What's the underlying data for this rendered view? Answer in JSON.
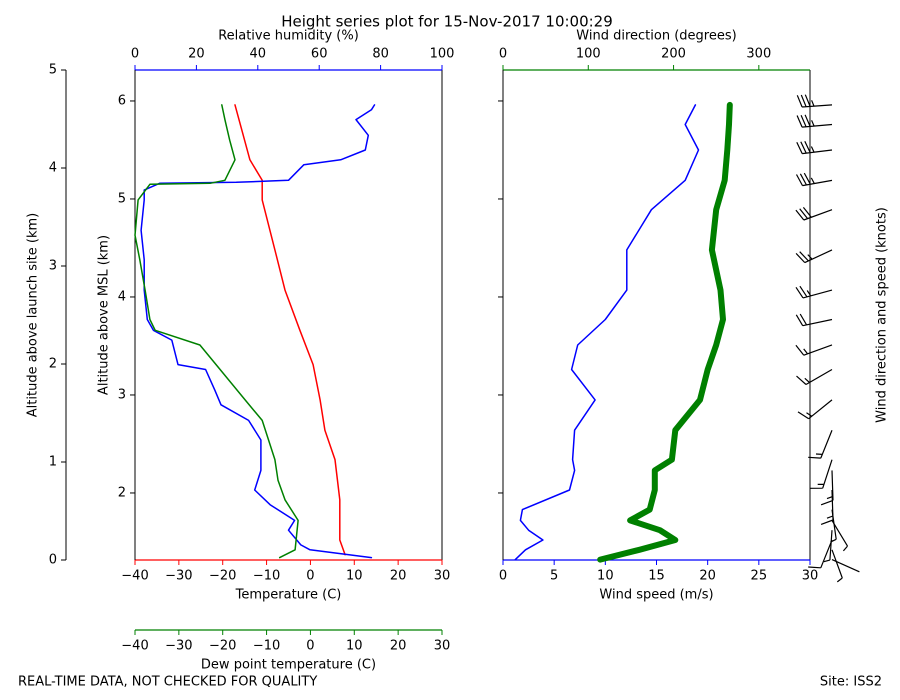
{
  "title": "Height series plot for 15-Nov-2017 10:00:29",
  "footer_left": "REAL-TIME DATA, NOT CHECKED FOR QUALITY",
  "footer_right": "Site: ISS2",
  "chart_data": [
    {
      "type": "line",
      "ylabel": "Altitude above MSL (km)",
      "ylim": [
        1.316,
        6.316
      ],
      "yticks": [
        2,
        3,
        4,
        5,
        6
      ],
      "outer_ylabel": "Altitude above launch site (km)",
      "outer_ylim": [
        0,
        5
      ],
      "outer_yticks": [
        0,
        1,
        2,
        3,
        4,
        5
      ],
      "xlabel": "Temperature (C)",
      "xlim": [
        -40,
        30
      ],
      "xcolor": "#ff0000",
      "xticks": [
        {
          "value": -40,
          "label": "−40"
        },
        {
          "value": -30,
          "label": "−30"
        },
        {
          "value": -20,
          "label": "−20"
        },
        {
          "value": -10,
          "label": "−10"
        },
        0,
        10,
        20,
        30
      ],
      "x2label": "Relative humidity (%)",
      "x2lim": [
        0,
        100
      ],
      "x2color": "#0000ff",
      "x2ticks": [
        0,
        20,
        40,
        60,
        80,
        100
      ],
      "x3label": "Dew point temperature (C)",
      "x3lim": [
        -40,
        30
      ],
      "x3color": "#008000",
      "x3ticks": [
        {
          "value": -40,
          "label": "−40"
        },
        {
          "value": -30,
          "label": "−30"
        },
        {
          "value": -20,
          "label": "−20"
        },
        {
          "value": -10,
          "label": "−10"
        },
        0,
        10,
        20,
        30
      ],
      "series": [
        {
          "axis": "x",
          "color": "#ff0000",
          "width": 1.5,
          "altitude": [
            1.37,
            1.52,
            1.93,
            2.34,
            2.64,
            2.95,
            3.31,
            3.66,
            4.07,
            4.48,
            4.99,
            5.19,
            5.4,
            5.96
          ],
          "values": [
            7.9,
            6.7,
            6.7,
            5.6,
            3.3,
            2.2,
            0.6,
            -2.4,
            -5.8,
            -8.1,
            -11.0,
            -11.0,
            -13.8,
            -17.2
          ]
        },
        {
          "axis": "x2",
          "color": "#0000ff",
          "width": 1.5,
          "altitude": [
            1.34,
            1.42,
            1.47,
            1.62,
            1.72,
            1.88,
            2.03,
            2.23,
            2.54,
            2.74,
            2.9,
            3.05,
            3.26,
            3.31,
            3.56,
            3.66,
            3.77,
            4.07,
            4.38,
            4.68,
            4.99,
            5.09,
            5.16,
            5.17,
            5.19,
            5.35,
            5.4,
            5.5,
            5.65,
            5.81,
            5.91,
            5.96
          ],
          "values": [
            77,
            57,
            54,
            50,
            52,
            44,
            39,
            41,
            41,
            37,
            28,
            26,
            23,
            14,
            12,
            6,
            4,
            3,
            3,
            2,
            3,
            3,
            8,
            33,
            50,
            55,
            67,
            75,
            76,
            72,
            77,
            78
          ]
        },
        {
          "axis": "x3",
          "color": "#008000",
          "width": 1.5,
          "altitude": [
            1.34,
            1.42,
            1.72,
            1.93,
            2.13,
            2.34,
            2.74,
            2.95,
            3.26,
            3.51,
            3.66,
            3.77,
            4.07,
            4.38,
            4.63,
            4.99,
            5.15,
            5.16,
            5.19,
            5.4,
            5.6,
            5.81,
            5.96
          ],
          "values": [
            -7.0,
            -3.5,
            -2.8,
            -5.8,
            -7.4,
            -8.1,
            -11.0,
            -14.9,
            -20.6,
            -25.2,
            -35.4,
            -36.6,
            -37.7,
            -38.9,
            -40.0,
            -39.3,
            -36.6,
            -22.9,
            -19.5,
            -17.2,
            -18.4,
            -19.5,
            -20.2
          ]
        }
      ]
    },
    {
      "type": "line",
      "ylim": [
        1.316,
        6.316
      ],
      "yticks": [
        2,
        3,
        4,
        5,
        6
      ],
      "xlabel": "Wind speed (m/s)",
      "xlim": [
        0,
        30
      ],
      "xcolor": "#0000ff",
      "xticks": [
        0,
        5,
        10,
        15,
        20,
        25,
        30
      ],
      "x2label": "Wind direction (degrees)",
      "x2lim": [
        0,
        360
      ],
      "x2color": "#008000",
      "x2ticks": [
        0,
        100,
        200,
        300
      ],
      "barb_label": "Wind direction and speed (knots)",
      "series": [
        {
          "axis": "x",
          "color": "#0000ff",
          "width": 1.5,
          "altitude": [
            1.32,
            1.42,
            1.52,
            1.62,
            1.72,
            1.83,
            2.03,
            2.23,
            2.34,
            2.64,
            2.95,
            3.26,
            3.51,
            3.77,
            4.07,
            4.48,
            4.89,
            5.19,
            5.5,
            5.76,
            5.96
          ],
          "values": [
            1.2,
            2.2,
            3.9,
            2.5,
            1.7,
            1.9,
            6.5,
            7.0,
            6.8,
            7.0,
            9.0,
            6.7,
            7.3,
            10.0,
            12.1,
            12.1,
            14.5,
            17.8,
            19.1,
            17.8,
            18.8
          ]
        },
        {
          "axis": "x2",
          "color": "#008000",
          "width": 6,
          "altitude": [
            1.32,
            1.42,
            1.52,
            1.62,
            1.72,
            1.83,
            2.03,
            2.23,
            2.34,
            2.64,
            2.95,
            3.26,
            3.51,
            3.77,
            4.07,
            4.48,
            4.89,
            5.19,
            5.5,
            5.76,
            5.96
          ],
          "values": [
            114,
            160,
            202,
            184,
            149,
            172,
            178,
            178,
            198,
            202,
            231,
            240,
            250,
            258,
            255,
            245,
            250,
            260,
            263,
            265,
            266
          ]
        }
      ]
    }
  ]
}
